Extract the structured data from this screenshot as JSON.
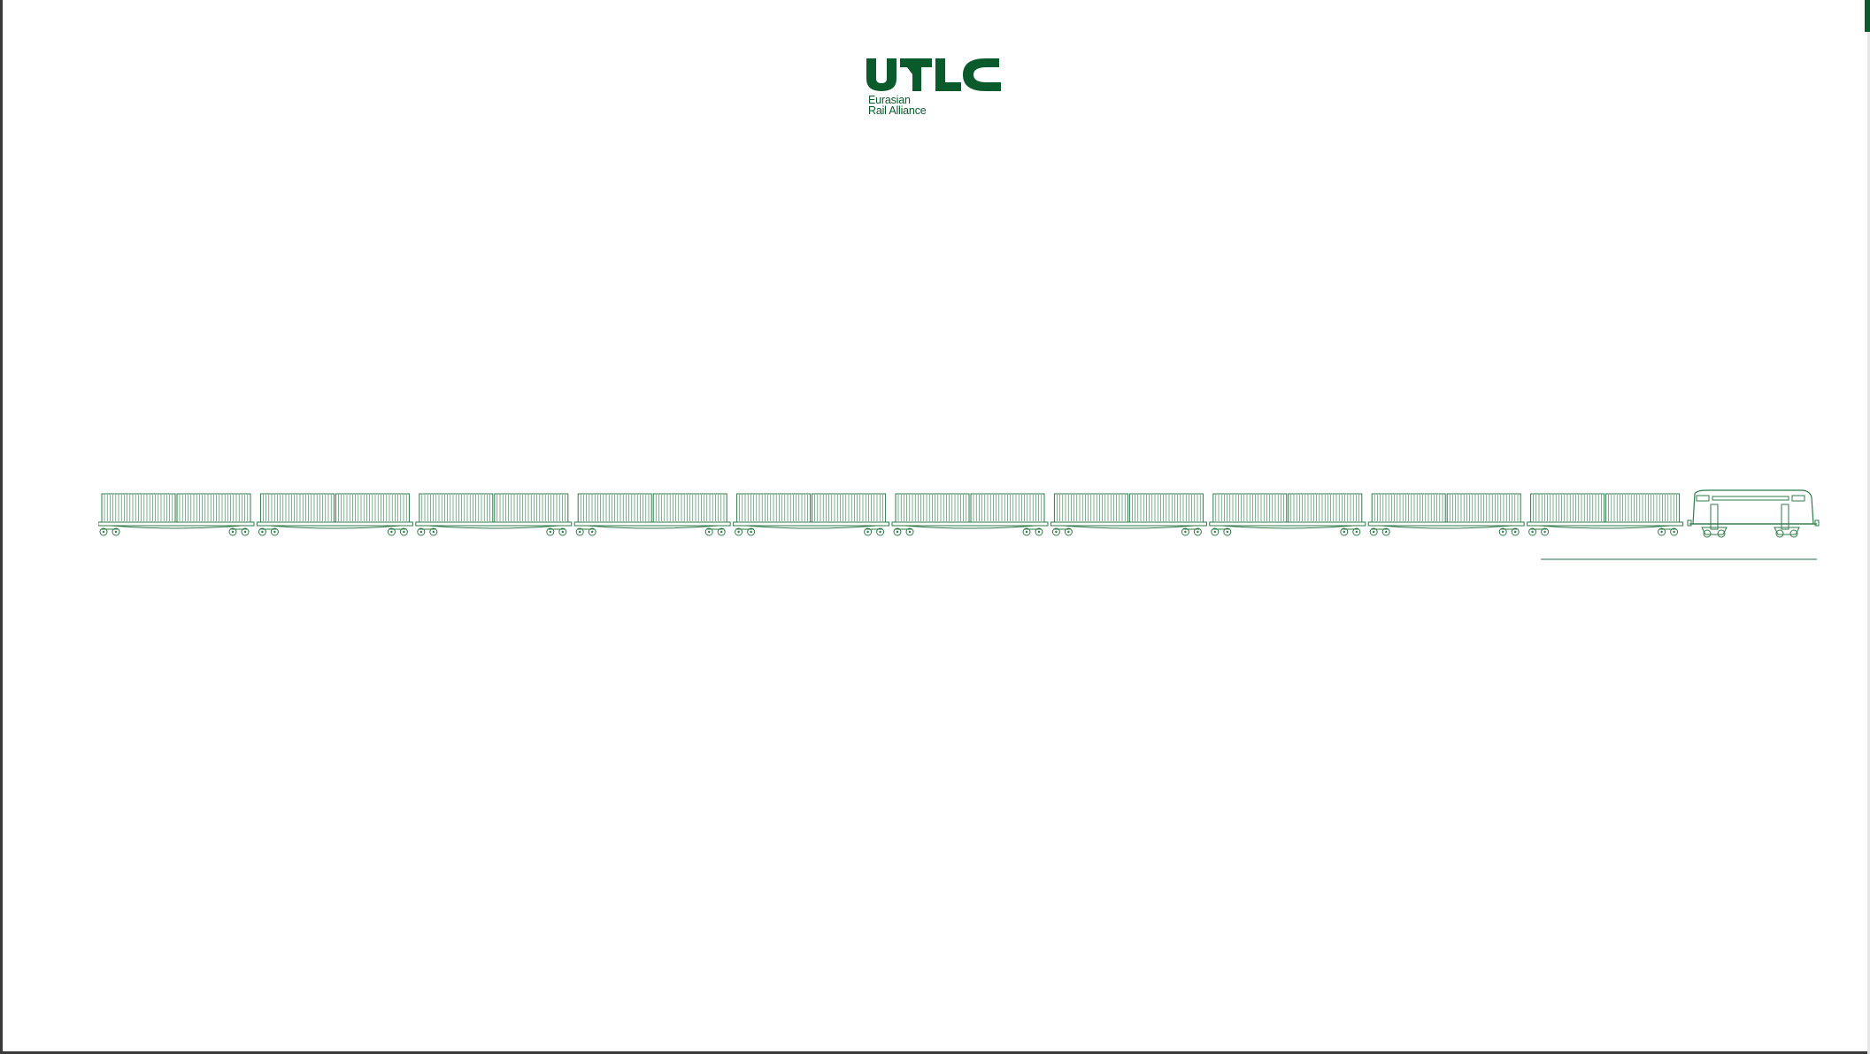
{
  "logo": {
    "wordmark": "UTLC",
    "subtitle_line1": "Eurasian",
    "subtitle_line2": "Rail Alliance"
  },
  "colors": {
    "brand_green": "#0a5a2c",
    "line_green": "#2e7a4a",
    "background": "#ffffff"
  },
  "train": {
    "wagon_count": 10,
    "locomotive": "locomotive-icon",
    "wagon_icon": "container-flatcar-icon"
  }
}
